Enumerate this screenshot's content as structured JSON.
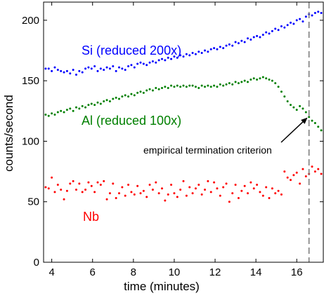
{
  "chart_data": {
    "type": "scatter",
    "xlabel": "time (minutes)",
    "ylabel": "counts/second",
    "xlim": [
      3.6,
      17.3
    ],
    "ylim": [
      0,
      215
    ],
    "xticks": [
      4,
      6,
      8,
      10,
      12,
      14,
      16
    ],
    "yticks": [
      0,
      50,
      100,
      150,
      200
    ],
    "grid": false,
    "legend": "none",
    "series": [
      {
        "name": "Si (reduced 200x)",
        "color": "#0000ff",
        "x": [
          3.7,
          3.85,
          4.0,
          4.15,
          4.3,
          4.45,
          4.6,
          4.75,
          4.9,
          5.05,
          5.2,
          5.35,
          5.5,
          5.65,
          5.8,
          5.95,
          6.1,
          6.25,
          6.4,
          6.55,
          6.7,
          6.85,
          7.0,
          7.15,
          7.3,
          7.45,
          7.6,
          7.75,
          7.9,
          8.05,
          8.2,
          8.35,
          8.5,
          8.65,
          8.8,
          8.95,
          9.1,
          9.25,
          9.4,
          9.55,
          9.7,
          9.85,
          10.0,
          10.15,
          10.3,
          10.45,
          10.6,
          10.75,
          10.9,
          11.05,
          11.2,
          11.35,
          11.5,
          11.65,
          11.8,
          11.95,
          12.1,
          12.25,
          12.4,
          12.55,
          12.7,
          12.85,
          13.0,
          13.15,
          13.3,
          13.45,
          13.6,
          13.75,
          13.9,
          14.05,
          14.2,
          14.35,
          14.5,
          14.65,
          14.8,
          14.95,
          15.1,
          15.25,
          15.4,
          15.55,
          15.7,
          15.85,
          16.0,
          16.15,
          16.3,
          16.45,
          16.6,
          16.75,
          16.9,
          17.05,
          17.2
        ],
        "y": [
          160,
          160,
          158,
          161,
          159,
          158,
          157,
          158,
          156,
          159,
          155,
          158,
          157,
          160,
          161,
          160,
          162,
          158,
          160,
          159,
          161,
          160,
          162,
          158,
          161,
          160,
          159,
          162,
          163,
          161,
          164,
          165,
          164,
          163,
          165,
          166,
          165,
          167,
          168,
          167,
          169,
          168,
          170,
          169,
          171,
          170,
          172,
          171,
          173,
          172,
          174,
          173,
          175,
          174,
          176,
          177,
          176,
          178,
          177,
          179,
          180,
          179,
          182,
          181,
          183,
          182,
          185,
          184,
          186,
          187,
          186,
          188,
          190,
          189,
          191,
          193,
          192,
          195,
          194,
          196,
          198,
          197,
          200,
          201,
          199,
          203,
          205,
          204,
          206,
          207,
          206
        ]
      },
      {
        "name": "Al (reduced 100x)",
        "color": "#008000",
        "x": [
          3.7,
          3.85,
          4.0,
          4.15,
          4.3,
          4.45,
          4.6,
          4.75,
          4.9,
          5.05,
          5.2,
          5.35,
          5.5,
          5.65,
          5.8,
          5.95,
          6.1,
          6.25,
          6.4,
          6.55,
          6.7,
          6.85,
          7.0,
          7.15,
          7.3,
          7.45,
          7.6,
          7.75,
          7.9,
          8.05,
          8.2,
          8.35,
          8.5,
          8.65,
          8.8,
          8.95,
          9.1,
          9.25,
          9.4,
          9.55,
          9.7,
          9.85,
          10.0,
          10.15,
          10.3,
          10.45,
          10.6,
          10.75,
          10.9,
          11.05,
          11.2,
          11.35,
          11.5,
          11.65,
          11.8,
          11.95,
          12.1,
          12.25,
          12.4,
          12.55,
          12.7,
          12.85,
          13.0,
          13.15,
          13.3,
          13.45,
          13.6,
          13.75,
          13.9,
          14.05,
          14.2,
          14.35,
          14.5,
          14.65,
          14.8,
          14.95,
          15.1,
          15.25,
          15.4,
          15.55,
          15.7,
          15.85,
          16.0,
          16.15,
          16.3,
          16.45,
          16.6,
          16.75,
          16.9,
          17.05,
          17.2
        ],
        "y": [
          122,
          121,
          123,
          122,
          124,
          125,
          124,
          126,
          127,
          125,
          128,
          127,
          129,
          128,
          130,
          131,
          130,
          132,
          131,
          133,
          134,
          133,
          135,
          136,
          135,
          137,
          138,
          137,
          139,
          138,
          140,
          141,
          140,
          142,
          143,
          142,
          144,
          143,
          144,
          145,
          144,
          146,
          145,
          146,
          145,
          146,
          145,
          146,
          146,
          145,
          144,
          146,
          145,
          146,
          145,
          146,
          145,
          147,
          146,
          147,
          148,
          147,
          149,
          148,
          149,
          150,
          149,
          151,
          152,
          151,
          152,
          153,
          152,
          151,
          150,
          148,
          145,
          141,
          137,
          133,
          130,
          128,
          126,
          129,
          127,
          124,
          120,
          117,
          115,
          112,
          109
        ]
      },
      {
        "name": "Nb",
        "color": "#ff0000",
        "x": [
          3.7,
          3.85,
          4.0,
          4.15,
          4.3,
          4.45,
          4.6,
          4.75,
          4.9,
          5.05,
          5.2,
          5.35,
          5.5,
          5.65,
          5.8,
          5.95,
          6.1,
          6.25,
          6.4,
          6.55,
          6.7,
          6.85,
          7.0,
          7.15,
          7.3,
          7.45,
          7.6,
          7.75,
          7.9,
          8.05,
          8.2,
          8.35,
          8.5,
          8.65,
          8.8,
          8.95,
          9.1,
          9.25,
          9.4,
          9.55,
          9.7,
          9.85,
          10.0,
          10.15,
          10.3,
          10.45,
          10.6,
          10.75,
          10.9,
          11.05,
          11.2,
          11.35,
          11.5,
          11.65,
          11.8,
          11.95,
          12.1,
          12.25,
          12.4,
          12.55,
          12.7,
          12.85,
          13.0,
          13.15,
          13.3,
          13.45,
          13.6,
          13.75,
          13.9,
          14.05,
          14.2,
          14.35,
          14.5,
          14.65,
          14.8,
          14.95,
          15.1,
          15.25,
          15.4,
          15.55,
          15.7,
          15.85,
          16.0,
          16.15,
          16.3,
          16.45,
          16.6,
          16.75,
          16.9,
          17.05,
          17.2
        ],
        "y": [
          62,
          61,
          70,
          58,
          64,
          60,
          52,
          59,
          65,
          67,
          60,
          65,
          58,
          60,
          66,
          63,
          58,
          66,
          64,
          67,
          52,
          57,
          65,
          53,
          57,
          62,
          55,
          64,
          58,
          56,
          63,
          57,
          59,
          54,
          64,
          60,
          66,
          57,
          61,
          51,
          56,
          64,
          57,
          54,
          60,
          67,
          55,
          62,
          57,
          61,
          64,
          56,
          60,
          67,
          58,
          66,
          61,
          55,
          62,
          65,
          50,
          57,
          64,
          53,
          59,
          63,
          57,
          66,
          61,
          64,
          58,
          55,
          62,
          53,
          61,
          57,
          59,
          56,
          75,
          70,
          68,
          72,
          74,
          65,
          77,
          71,
          73,
          79,
          75,
          77,
          73
        ]
      }
    ],
    "vline": {
      "x": 16.6,
      "style": "dashed",
      "color": "#777777"
    },
    "annotations": [
      {
        "text": "Si (reduced 200x)",
        "color": "#0000ff"
      },
      {
        "text": "Al (reduced 100x)",
        "color": "#008000"
      },
      {
        "text": "Nb",
        "color": "#ff0000"
      },
      {
        "text": "empirical termination criterion",
        "color": "#000000",
        "arrow_to": [
          16.6,
          122
        ]
      }
    ]
  }
}
